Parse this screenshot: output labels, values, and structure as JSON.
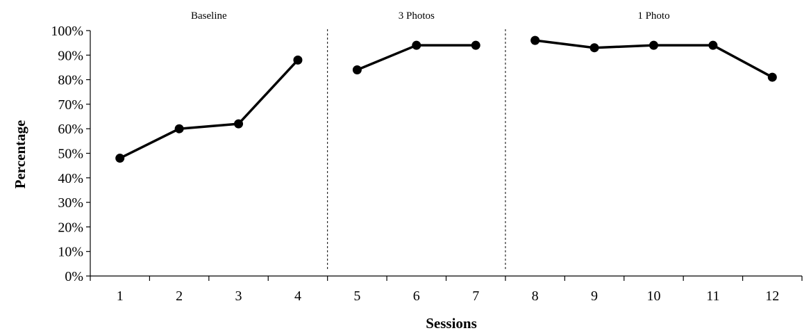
{
  "chart_data": {
    "type": "line",
    "xlabel": "Sessions",
    "ylabel": "Percentage",
    "ylim": [
      0,
      100
    ],
    "y_tick_labels": [
      "0%",
      "10%",
      "20%",
      "30%",
      "40%",
      "50%",
      "60%",
      "70%",
      "80%",
      "90%",
      "100%"
    ],
    "y_tick_values": [
      0,
      10,
      20,
      30,
      40,
      50,
      60,
      70,
      80,
      90,
      100
    ],
    "categories": [
      "1",
      "2",
      "3",
      "4",
      "5",
      "6",
      "7",
      "8",
      "9",
      "10",
      "11",
      "12"
    ],
    "phases": [
      {
        "name": "Baseline",
        "sessions": [
          1,
          2,
          3,
          4
        ],
        "values": [
          48,
          60,
          62,
          88
        ]
      },
      {
        "name": "3 Photos",
        "sessions": [
          5,
          6,
          7
        ],
        "values": [
          84,
          94,
          94
        ]
      },
      {
        "name": "1 Photo",
        "sessions": [
          8,
          9,
          10,
          11,
          12
        ],
        "values": [
          96,
          93,
          94,
          94,
          81
        ]
      }
    ],
    "phase_change_lines_after_session": [
      4,
      7
    ],
    "grid": false,
    "line_color": "#000000",
    "marker_color": "#000000"
  }
}
